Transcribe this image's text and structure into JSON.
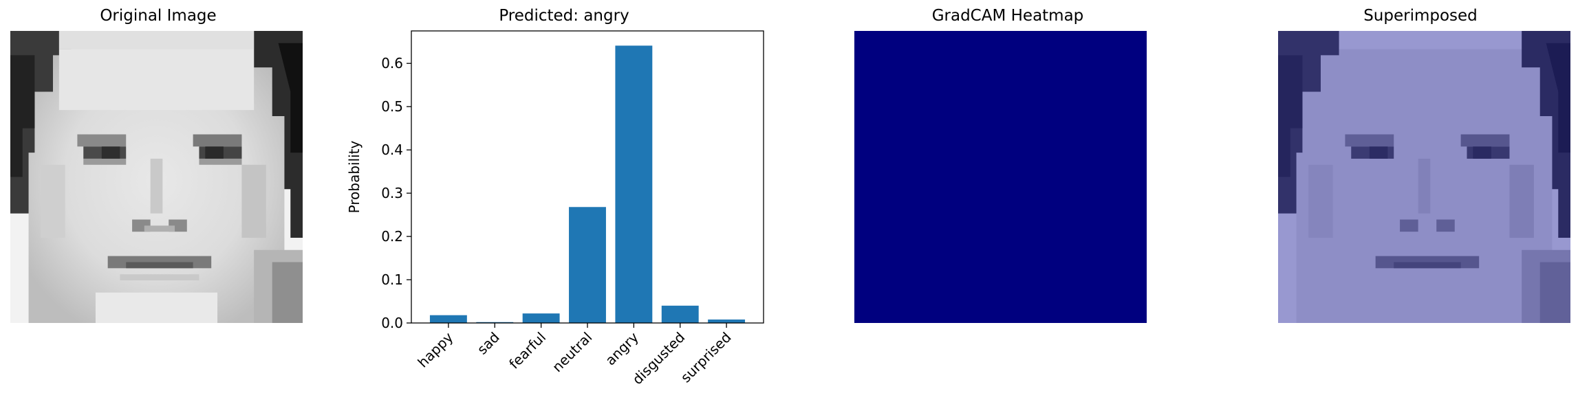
{
  "panels": {
    "original": {
      "title": "Original Image"
    },
    "chart": {
      "title": "Predicted: angry"
    },
    "heatmap": {
      "title": "GradCAM Heatmap",
      "color": "#00007f"
    },
    "superimposed": {
      "title": "Superimposed",
      "tint": "#2a2aa6"
    }
  },
  "chart_data": {
    "type": "bar",
    "title": "Predicted: angry",
    "xlabel": "",
    "ylabel": "Probability",
    "categories": [
      "happy",
      "sad",
      "fearful",
      "neutral",
      "angry",
      "disgusted",
      "surprised"
    ],
    "values": [
      0.018,
      0.002,
      0.022,
      0.268,
      0.641,
      0.04,
      0.008
    ],
    "ylim": [
      0,
      0.675
    ],
    "yticks": [
      "0.0",
      "0.1",
      "0.2",
      "0.3",
      "0.4",
      "0.5",
      "0.6"
    ],
    "bar_color": "#1f77b4",
    "grid": false,
    "legend": "none"
  }
}
